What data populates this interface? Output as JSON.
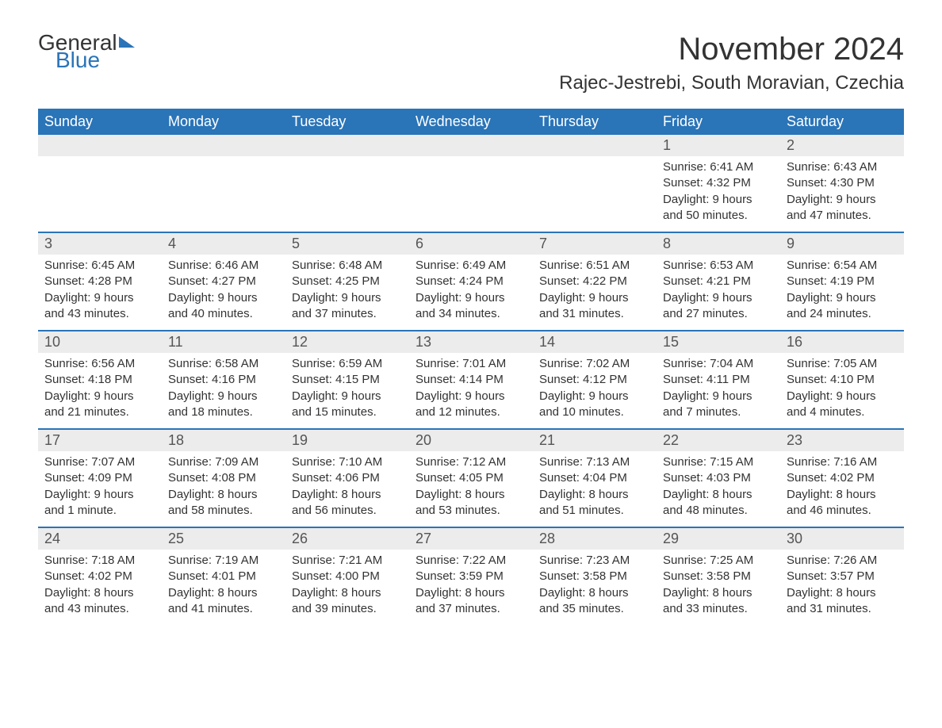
{
  "brand": {
    "general": "General",
    "blue": "Blue"
  },
  "title": "November 2024",
  "location": "Rajec-Jestrebi, South Moravian, Czechia",
  "colors": {
    "header_bg": "#2a74b8",
    "header_text": "#ffffff",
    "row_divider": "#2a74b8",
    "daynum_bg": "#ececec",
    "text": "#333333",
    "background": "#ffffff"
  },
  "day_labels": [
    "Sunday",
    "Monday",
    "Tuesday",
    "Wednesday",
    "Thursday",
    "Friday",
    "Saturday"
  ],
  "weeks": [
    [
      {
        "day": "",
        "sunrise": "",
        "sunset": "",
        "daylight": ""
      },
      {
        "day": "",
        "sunrise": "",
        "sunset": "",
        "daylight": ""
      },
      {
        "day": "",
        "sunrise": "",
        "sunset": "",
        "daylight": ""
      },
      {
        "day": "",
        "sunrise": "",
        "sunset": "",
        "daylight": ""
      },
      {
        "day": "",
        "sunrise": "",
        "sunset": "",
        "daylight": ""
      },
      {
        "day": "1",
        "sunrise": "Sunrise: 6:41 AM",
        "sunset": "Sunset: 4:32 PM",
        "daylight": "Daylight: 9 hours and 50 minutes."
      },
      {
        "day": "2",
        "sunrise": "Sunrise: 6:43 AM",
        "sunset": "Sunset: 4:30 PM",
        "daylight": "Daylight: 9 hours and 47 minutes."
      }
    ],
    [
      {
        "day": "3",
        "sunrise": "Sunrise: 6:45 AM",
        "sunset": "Sunset: 4:28 PM",
        "daylight": "Daylight: 9 hours and 43 minutes."
      },
      {
        "day": "4",
        "sunrise": "Sunrise: 6:46 AM",
        "sunset": "Sunset: 4:27 PM",
        "daylight": "Daylight: 9 hours and 40 minutes."
      },
      {
        "day": "5",
        "sunrise": "Sunrise: 6:48 AM",
        "sunset": "Sunset: 4:25 PM",
        "daylight": "Daylight: 9 hours and 37 minutes."
      },
      {
        "day": "6",
        "sunrise": "Sunrise: 6:49 AM",
        "sunset": "Sunset: 4:24 PM",
        "daylight": "Daylight: 9 hours and 34 minutes."
      },
      {
        "day": "7",
        "sunrise": "Sunrise: 6:51 AM",
        "sunset": "Sunset: 4:22 PM",
        "daylight": "Daylight: 9 hours and 31 minutes."
      },
      {
        "day": "8",
        "sunrise": "Sunrise: 6:53 AM",
        "sunset": "Sunset: 4:21 PM",
        "daylight": "Daylight: 9 hours and 27 minutes."
      },
      {
        "day": "9",
        "sunrise": "Sunrise: 6:54 AM",
        "sunset": "Sunset: 4:19 PM",
        "daylight": "Daylight: 9 hours and 24 minutes."
      }
    ],
    [
      {
        "day": "10",
        "sunrise": "Sunrise: 6:56 AM",
        "sunset": "Sunset: 4:18 PM",
        "daylight": "Daylight: 9 hours and 21 minutes."
      },
      {
        "day": "11",
        "sunrise": "Sunrise: 6:58 AM",
        "sunset": "Sunset: 4:16 PM",
        "daylight": "Daylight: 9 hours and 18 minutes."
      },
      {
        "day": "12",
        "sunrise": "Sunrise: 6:59 AM",
        "sunset": "Sunset: 4:15 PM",
        "daylight": "Daylight: 9 hours and 15 minutes."
      },
      {
        "day": "13",
        "sunrise": "Sunrise: 7:01 AM",
        "sunset": "Sunset: 4:14 PM",
        "daylight": "Daylight: 9 hours and 12 minutes."
      },
      {
        "day": "14",
        "sunrise": "Sunrise: 7:02 AM",
        "sunset": "Sunset: 4:12 PM",
        "daylight": "Daylight: 9 hours and 10 minutes."
      },
      {
        "day": "15",
        "sunrise": "Sunrise: 7:04 AM",
        "sunset": "Sunset: 4:11 PM",
        "daylight": "Daylight: 9 hours and 7 minutes."
      },
      {
        "day": "16",
        "sunrise": "Sunrise: 7:05 AM",
        "sunset": "Sunset: 4:10 PM",
        "daylight": "Daylight: 9 hours and 4 minutes."
      }
    ],
    [
      {
        "day": "17",
        "sunrise": "Sunrise: 7:07 AM",
        "sunset": "Sunset: 4:09 PM",
        "daylight": "Daylight: 9 hours and 1 minute."
      },
      {
        "day": "18",
        "sunrise": "Sunrise: 7:09 AM",
        "sunset": "Sunset: 4:08 PM",
        "daylight": "Daylight: 8 hours and 58 minutes."
      },
      {
        "day": "19",
        "sunrise": "Sunrise: 7:10 AM",
        "sunset": "Sunset: 4:06 PM",
        "daylight": "Daylight: 8 hours and 56 minutes."
      },
      {
        "day": "20",
        "sunrise": "Sunrise: 7:12 AM",
        "sunset": "Sunset: 4:05 PM",
        "daylight": "Daylight: 8 hours and 53 minutes."
      },
      {
        "day": "21",
        "sunrise": "Sunrise: 7:13 AM",
        "sunset": "Sunset: 4:04 PM",
        "daylight": "Daylight: 8 hours and 51 minutes."
      },
      {
        "day": "22",
        "sunrise": "Sunrise: 7:15 AM",
        "sunset": "Sunset: 4:03 PM",
        "daylight": "Daylight: 8 hours and 48 minutes."
      },
      {
        "day": "23",
        "sunrise": "Sunrise: 7:16 AM",
        "sunset": "Sunset: 4:02 PM",
        "daylight": "Daylight: 8 hours and 46 minutes."
      }
    ],
    [
      {
        "day": "24",
        "sunrise": "Sunrise: 7:18 AM",
        "sunset": "Sunset: 4:02 PM",
        "daylight": "Daylight: 8 hours and 43 minutes."
      },
      {
        "day": "25",
        "sunrise": "Sunrise: 7:19 AM",
        "sunset": "Sunset: 4:01 PM",
        "daylight": "Daylight: 8 hours and 41 minutes."
      },
      {
        "day": "26",
        "sunrise": "Sunrise: 7:21 AM",
        "sunset": "Sunset: 4:00 PM",
        "daylight": "Daylight: 8 hours and 39 minutes."
      },
      {
        "day": "27",
        "sunrise": "Sunrise: 7:22 AM",
        "sunset": "Sunset: 3:59 PM",
        "daylight": "Daylight: 8 hours and 37 minutes."
      },
      {
        "day": "28",
        "sunrise": "Sunrise: 7:23 AM",
        "sunset": "Sunset: 3:58 PM",
        "daylight": "Daylight: 8 hours and 35 minutes."
      },
      {
        "day": "29",
        "sunrise": "Sunrise: 7:25 AM",
        "sunset": "Sunset: 3:58 PM",
        "daylight": "Daylight: 8 hours and 33 minutes."
      },
      {
        "day": "30",
        "sunrise": "Sunrise: 7:26 AM",
        "sunset": "Sunset: 3:57 PM",
        "daylight": "Daylight: 8 hours and 31 minutes."
      }
    ]
  ]
}
